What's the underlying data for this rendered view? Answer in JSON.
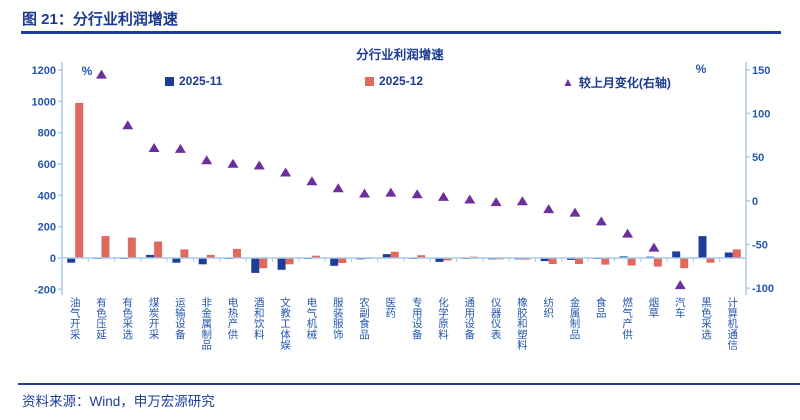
{
  "header": {
    "title": "图 21：分行业利润增速"
  },
  "footer": {
    "source": "资料来源：Wind，申万宏源研究"
  },
  "chart_data": {
    "type": "bar",
    "title": "分行业利润增速",
    "legend": [
      {
        "name": "2025-11",
        "marker": "square",
        "color": "#1d3d99"
      },
      {
        "name": "2025-12",
        "marker": "square",
        "color": "#e0695e"
      },
      {
        "name": "较上月变化(右轴)",
        "marker": "triangle",
        "color": "#6e2f9e"
      }
    ],
    "colors": {
      "navy": "#1d3d99",
      "salmon": "#e0695e",
      "purple": "#6e2f9e",
      "axis_line": "#a8cbec",
      "axis_text": "#2456ad"
    },
    "left_axis": {
      "unit": "%",
      "min": -200,
      "max": 1200,
      "ticks": [
        1200,
        1000,
        800,
        600,
        400,
        200,
        0,
        -200
      ]
    },
    "right_axis": {
      "unit": "%",
      "min": -100,
      "max": 150,
      "ticks": [
        150,
        100,
        50,
        0,
        -50,
        -100
      ]
    },
    "categories": [
      "油气开采",
      "有色压延",
      "有色采选",
      "煤炭开采",
      "运输设备",
      "非金属制品",
      "电热产供",
      "酒和饮料",
      "文教工体娱",
      "电气机械",
      "服装服饰",
      "农副食品",
      "医药",
      "专用设备",
      "化学原料",
      "通用设备",
      "仪器仪表",
      "橡胶和塑料",
      "纺织",
      "金属制品",
      "食品",
      "燃气产供",
      "烟草",
      "汽车",
      "黑色采选",
      "计算机通信"
    ],
    "series": [
      {
        "name": "2025-11",
        "type": "bar",
        "axis": "left",
        "values": [
          -30,
          -3,
          -3,
          20,
          -30,
          -40,
          -3,
          -95,
          -75,
          -5,
          -50,
          -8,
          25,
          -5,
          -25,
          -5,
          -8,
          -8,
          -20,
          -12,
          -5,
          10,
          8,
          42,
          140,
          35
        ]
      },
      {
        "name": "2025-12",
        "type": "bar",
        "axis": "left",
        "values": [
          990,
          140,
          130,
          105,
          55,
          20,
          58,
          -65,
          -40,
          15,
          -32,
          -5,
          40,
          18,
          -15,
          8,
          -8,
          -10,
          -38,
          -38,
          -42,
          -48,
          -55,
          -65,
          -30,
          55
        ]
      },
      {
        "name": "较上月变化(右轴)",
        "type": "scatter-triangle",
        "axis": "right",
        "values": [
          null,
          145,
          87,
          61,
          60,
          47,
          43,
          41,
          33,
          23,
          15,
          9,
          10,
          8,
          5,
          2,
          -1,
          0,
          -9,
          -13,
          -23,
          -37,
          -53,
          -96,
          null,
          null
        ]
      }
    ]
  }
}
